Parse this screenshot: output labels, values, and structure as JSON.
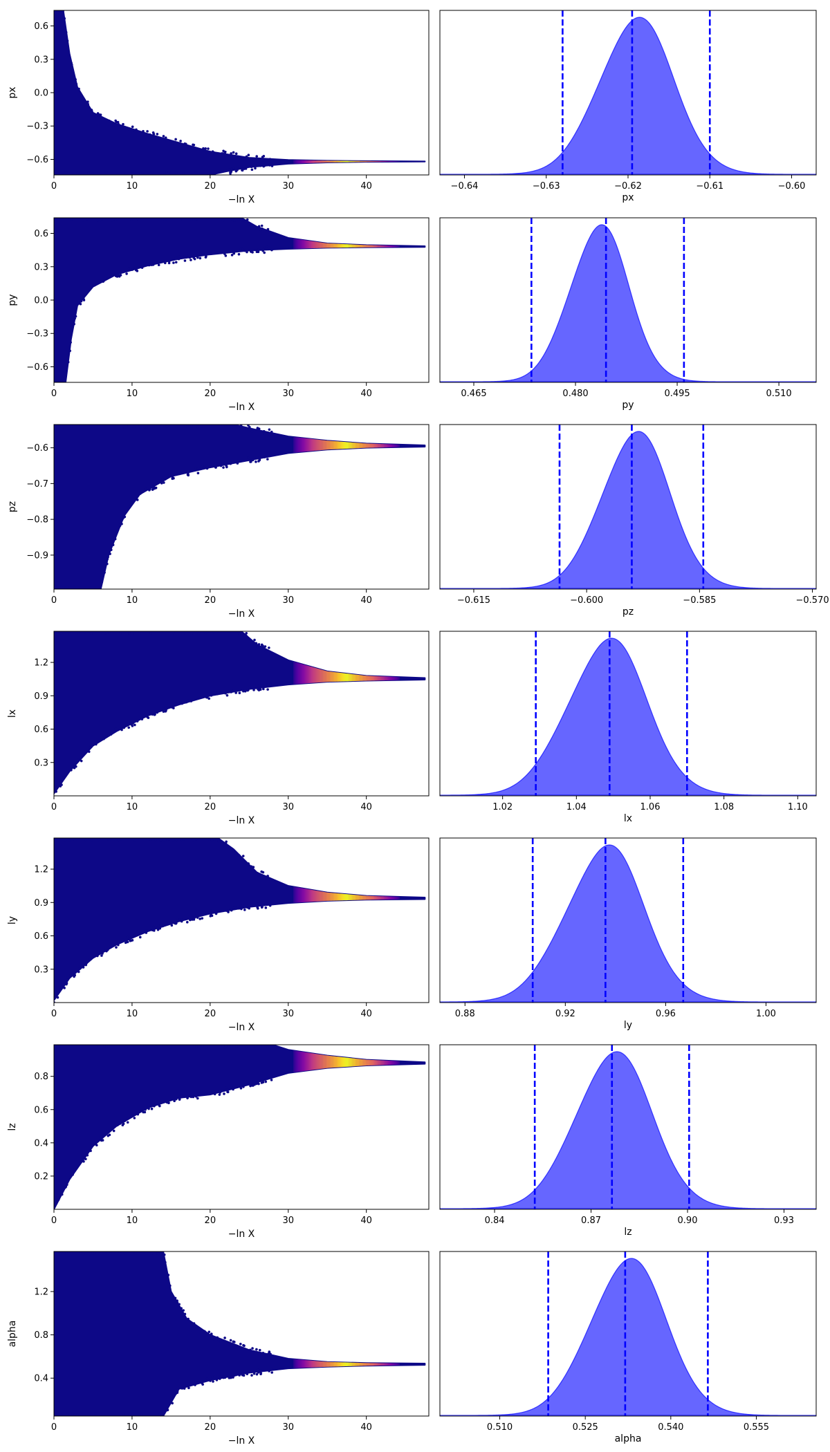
{
  "chart_data": [
    {
      "panel": "trace",
      "type": "scatter",
      "param": "px",
      "xlabel": "−ln X",
      "ylabel": "px",
      "xlim": [
        0,
        48
      ],
      "ylim": [
        -0.74,
        0.74
      ],
      "xticks": [
        "0",
        "10",
        "20",
        "30",
        "40"
      ],
      "yticks": [
        "0.6",
        "0.3",
        "0.0",
        "−0.3",
        "−0.6"
      ],
      "converge_value": -0.62,
      "envelope_upper": [
        [
          0,
          0.74
        ],
        [
          1.2,
          0.74
        ],
        [
          2,
          0.35
        ],
        [
          3,
          0.05
        ],
        [
          5,
          -0.18
        ],
        [
          8,
          -0.28
        ],
        [
          12,
          -0.37
        ],
        [
          16,
          -0.45
        ],
        [
          20,
          -0.53
        ],
        [
          25,
          -0.585
        ],
        [
          30,
          -0.605
        ],
        [
          35,
          -0.612
        ],
        [
          40,
          -0.615
        ],
        [
          47.5,
          -0.618
        ]
      ],
      "envelope_lower": [
        [
          0,
          -0.74
        ],
        [
          20,
          -0.74
        ],
        [
          22,
          -0.71
        ],
        [
          25,
          -0.67
        ],
        [
          30,
          -0.64
        ],
        [
          35,
          -0.628
        ],
        [
          40,
          -0.623
        ],
        [
          47.5,
          -0.62
        ]
      ],
      "highlight_range": [
        33,
        42
      ]
    },
    {
      "panel": "posterior",
      "type": "area",
      "param": "px",
      "xlabel": "px",
      "xlim": [
        -0.643,
        -0.597
      ],
      "xticks": [
        -0.64,
        -0.63,
        -0.62,
        -0.61,
        -0.6
      ],
      "xtick_labels": [
        "−0.64",
        "−0.63",
        "−0.62",
        "−0.61",
        "−0.60"
      ],
      "mean": -0.619,
      "sd": 0.0045,
      "quantile_lines": [
        -0.628,
        -0.6195,
        -0.61
      ],
      "skew": 0
    },
    {
      "panel": "trace",
      "type": "scatter",
      "param": "py",
      "xlabel": "−ln X",
      "ylabel": "py",
      "xlim": [
        0,
        48
      ],
      "ylim": [
        -0.74,
        0.74
      ],
      "xticks": [
        "0",
        "10",
        "20",
        "30",
        "40"
      ],
      "yticks": [
        "0.6",
        "0.3",
        "0.0",
        "−0.3",
        "−0.6"
      ],
      "converge_value": 0.48,
      "envelope_upper": [
        [
          0,
          0.74
        ],
        [
          24,
          0.74
        ],
        [
          26,
          0.66
        ],
        [
          30,
          0.56
        ],
        [
          35,
          0.51
        ],
        [
          40,
          0.495
        ],
        [
          47.5,
          0.485
        ]
      ],
      "envelope_lower": [
        [
          0,
          -0.74
        ],
        [
          1.5,
          -0.74
        ],
        [
          2.2,
          -0.35
        ],
        [
          3,
          -0.05
        ],
        [
          5,
          0.12
        ],
        [
          8,
          0.23
        ],
        [
          12,
          0.31
        ],
        [
          16,
          0.37
        ],
        [
          20,
          0.41
        ],
        [
          25,
          0.445
        ],
        [
          30,
          0.46
        ],
        [
          35,
          0.47
        ],
        [
          40,
          0.474
        ],
        [
          47.5,
          0.477
        ]
      ],
      "highlight_range": [
        33,
        42
      ]
    },
    {
      "panel": "posterior",
      "type": "area",
      "param": "py",
      "xlabel": "py",
      "xlim": [
        0.46,
        0.5155
      ],
      "xticks": [
        0.465,
        0.48,
        0.495,
        0.51
      ],
      "xtick_labels": [
        "0.465",
        "0.480",
        "0.495",
        "0.510"
      ],
      "mean": 0.4835,
      "sd": 0.0043,
      "quantile_lines": [
        0.4735,
        0.4845,
        0.496
      ],
      "skew": 0
    },
    {
      "panel": "trace",
      "type": "scatter",
      "param": "pz",
      "xlabel": "−ln X",
      "ylabel": "pz",
      "xlim": [
        0,
        48
      ],
      "ylim": [
        -0.995,
        -0.535
      ],
      "xticks": [
        "0",
        "10",
        "20",
        "30",
        "40"
      ],
      "yticks": [
        "−0.6",
        "−0.7",
        "−0.8",
        "−0.9"
      ],
      "converge_value": -0.595,
      "envelope_upper": [
        [
          0,
          -0.535
        ],
        [
          23,
          -0.535
        ],
        [
          26,
          -0.55
        ],
        [
          30,
          -0.568
        ],
        [
          35,
          -0.58
        ],
        [
          40,
          -0.588
        ],
        [
          47.5,
          -0.593
        ]
      ],
      "envelope_lower": [
        [
          0,
          -0.995
        ],
        [
          6,
          -0.995
        ],
        [
          7,
          -0.9
        ],
        [
          9,
          -0.79
        ],
        [
          11,
          -0.73
        ],
        [
          15,
          -0.68
        ],
        [
          20,
          -0.655
        ],
        [
          25,
          -0.635
        ],
        [
          30,
          -0.615
        ],
        [
          35,
          -0.605
        ],
        [
          40,
          -0.6
        ],
        [
          47.5,
          -0.597
        ]
      ],
      "highlight_range": [
        33,
        42
      ]
    },
    {
      "panel": "posterior",
      "type": "area",
      "param": "pz",
      "xlabel": "pz",
      "xlim": [
        -0.6195,
        -0.5695
      ],
      "xticks": [
        -0.615,
        -0.6,
        -0.585,
        -0.57
      ],
      "xtick_labels": [
        "−0.615",
        "−0.600",
        "−0.585",
        "−0.570"
      ],
      "mean": -0.5935,
      "sd": 0.0045,
      "quantile_lines": [
        -0.6036,
        -0.594,
        -0.5845
      ],
      "skew": 0
    },
    {
      "panel": "trace",
      "type": "scatter",
      "param": "lx",
      "xlabel": "−ln X",
      "ylabel": "lx",
      "xlim": [
        0,
        48
      ],
      "ylim": [
        0,
        1.48
      ],
      "xticks": [
        "0",
        "10",
        "20",
        "30",
        "40"
      ],
      "yticks": [
        "1.2",
        "0.9",
        "0.6",
        "0.3"
      ],
      "converge_value": 1.05,
      "envelope_upper": [
        [
          0,
          1.48
        ],
        [
          24,
          1.48
        ],
        [
          26,
          1.36
        ],
        [
          30,
          1.22
        ],
        [
          35,
          1.12
        ],
        [
          40,
          1.08
        ],
        [
          47.5,
          1.06
        ]
      ],
      "envelope_lower": [
        [
          0,
          0.02
        ],
        [
          2,
          0.22
        ],
        [
          5,
          0.45
        ],
        [
          8,
          0.58
        ],
        [
          12,
          0.72
        ],
        [
          16,
          0.82
        ],
        [
          20,
          0.9
        ],
        [
          25,
          0.96
        ],
        [
          30,
          1.0
        ],
        [
          35,
          1.025
        ],
        [
          40,
          1.035
        ],
        [
          47.5,
          1.045
        ]
      ],
      "highlight_range": [
        33,
        42
      ]
    },
    {
      "panel": "posterior",
      "type": "area",
      "param": "lx",
      "xlabel": "lx",
      "xlim": [
        1.003,
        1.105
      ],
      "xticks": [
        1.02,
        1.04,
        1.06,
        1.08,
        1.1
      ],
      "xtick_labels": [
        "1.02",
        "1.04",
        "1.06",
        "1.08",
        "1.10"
      ],
      "mean": 1.048,
      "sd": 0.0106,
      "quantile_lines": [
        1.029,
        1.049,
        1.07
      ],
      "skew": 0.25
    },
    {
      "panel": "trace",
      "type": "scatter",
      "param": "ly",
      "xlabel": "−ln X",
      "ylabel": "ly",
      "xlim": [
        0,
        48
      ],
      "ylim": [
        0,
        1.48
      ],
      "xticks": [
        "0",
        "10",
        "20",
        "30",
        "40"
      ],
      "yticks": [
        "1.2",
        "0.9",
        "0.6",
        "0.3"
      ],
      "converge_value": 0.935,
      "envelope_upper": [
        [
          0,
          1.48
        ],
        [
          21,
          1.48
        ],
        [
          23,
          1.38
        ],
        [
          26,
          1.17
        ],
        [
          30,
          1.05
        ],
        [
          35,
          0.99
        ],
        [
          40,
          0.96
        ],
        [
          47.5,
          0.945
        ]
      ],
      "envelope_lower": [
        [
          0,
          0.02
        ],
        [
          2,
          0.22
        ],
        [
          5,
          0.4
        ],
        [
          8,
          0.52
        ],
        [
          12,
          0.64
        ],
        [
          16,
          0.73
        ],
        [
          20,
          0.8
        ],
        [
          25,
          0.86
        ],
        [
          30,
          0.895
        ],
        [
          35,
          0.915
        ],
        [
          40,
          0.925
        ],
        [
          47.5,
          0.93
        ]
      ],
      "highlight_range": [
        33,
        42
      ]
    },
    {
      "panel": "posterior",
      "type": "area",
      "param": "ly",
      "xlabel": "ly",
      "xlim": [
        0.87,
        1.02
      ],
      "xticks": [
        0.88,
        0.92,
        0.96,
        1.0
      ],
      "xtick_labels": [
        "0.88",
        "0.92",
        "0.96",
        "1.00"
      ],
      "mean": 0.935,
      "sd": 0.0155,
      "quantile_lines": [
        0.907,
        0.936,
        0.967
      ],
      "skew": 0.35
    },
    {
      "panel": "trace",
      "type": "scatter",
      "param": "lz",
      "xlabel": "−ln X",
      "ylabel": "lz",
      "xlim": [
        0,
        48
      ],
      "ylim": [
        0,
        0.99
      ],
      "xticks": [
        "0",
        "10",
        "20",
        "30",
        "40"
      ],
      "yticks": [
        "0.8",
        "0.6",
        "0.4",
        "0.2"
      ],
      "converge_value": 0.88,
      "envelope_upper": [
        [
          0,
          0.99
        ],
        [
          28,
          0.99
        ],
        [
          30,
          0.96
        ],
        [
          35,
          0.925
        ],
        [
          40,
          0.9
        ],
        [
          47.5,
          0.885
        ]
      ],
      "envelope_lower": [
        [
          0,
          0.0
        ],
        [
          2,
          0.18
        ],
        [
          5,
          0.38
        ],
        [
          8,
          0.5
        ],
        [
          12,
          0.61
        ],
        [
          16,
          0.67
        ],
        [
          20,
          0.69
        ],
        [
          25,
          0.75
        ],
        [
          30,
          0.82
        ],
        [
          35,
          0.85
        ],
        [
          40,
          0.865
        ],
        [
          47.5,
          0.875
        ]
      ],
      "highlight_range": [
        33,
        42
      ]
    },
    {
      "panel": "posterior",
      "type": "area",
      "param": "lz",
      "xlabel": "lz",
      "xlim": [
        0.823,
        0.94
      ],
      "xticks": [
        0.84,
        0.87,
        0.9,
        0.93
      ],
      "xtick_labels": [
        "0.84",
        "0.87",
        "0.90",
        "0.93"
      ],
      "mean": 0.877,
      "sd": 0.0118,
      "quantile_lines": [
        0.8525,
        0.8765,
        0.9005
      ],
      "skew": 0
    },
    {
      "panel": "trace",
      "type": "scatter",
      "param": "alpha",
      "xlabel": "−ln X",
      "ylabel": "alpha",
      "xlim": [
        0,
        48
      ],
      "ylim": [
        0.05,
        1.57
      ],
      "xticks": [
        "0",
        "10",
        "20",
        "30",
        "40"
      ],
      "yticks": [
        "1.2",
        "0.8",
        "0.4"
      ],
      "converge_value": 0.53,
      "envelope_upper": [
        [
          0,
          1.57
        ],
        [
          14,
          1.57
        ],
        [
          15,
          1.2
        ],
        [
          17,
          0.95
        ],
        [
          20,
          0.8
        ],
        [
          25,
          0.66
        ],
        [
          30,
          0.58
        ],
        [
          35,
          0.55
        ],
        [
          40,
          0.54
        ],
        [
          47.5,
          0.535
        ]
      ],
      "envelope_lower": [
        [
          0,
          0.05
        ],
        [
          14,
          0.05
        ],
        [
          16,
          0.3
        ],
        [
          20,
          0.38
        ],
        [
          25,
          0.45
        ],
        [
          30,
          0.49
        ],
        [
          35,
          0.505
        ],
        [
          40,
          0.515
        ],
        [
          47.5,
          0.522
        ]
      ],
      "highlight_range": [
        33,
        42
      ]
    },
    {
      "panel": "posterior",
      "type": "area",
      "param": "alpha",
      "xlabel": "alpha",
      "xlim": [
        0.4995,
        0.5655
      ],
      "xticks": [
        0.51,
        0.525,
        0.54,
        0.555
      ],
      "xtick_labels": [
        "0.510",
        "0.525",
        "0.540",
        "0.555"
      ],
      "mean": 0.5325,
      "sd": 0.0066,
      "quantile_lines": [
        0.5185,
        0.532,
        0.5465
      ],
      "skew": 0
    }
  ]
}
